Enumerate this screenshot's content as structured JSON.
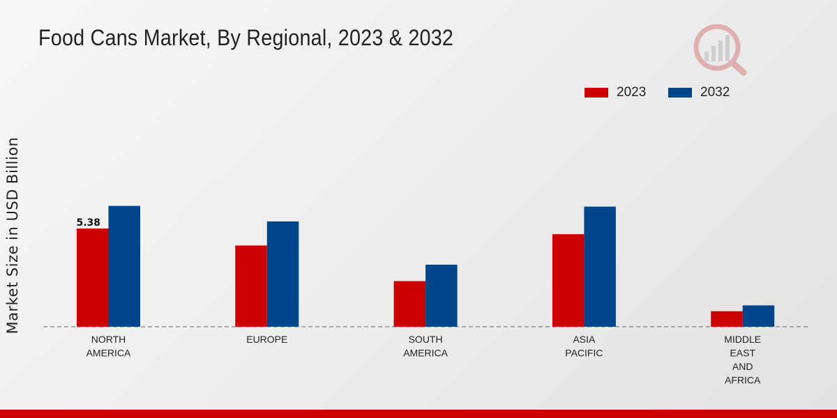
{
  "chart_data": {
    "type": "bar",
    "title": "Food Cans Market, By Regional, 2023 & 2032",
    "xlabel": "",
    "ylabel": "Market Size in USD Billion",
    "categories": [
      [
        "NORTH",
        "AMERICA"
      ],
      [
        "EUROPE"
      ],
      [
        "SOUTH",
        "AMERICA"
      ],
      [
        "ASIA",
        "PACIFIC"
      ],
      [
        "MIDDLE",
        "EAST",
        "AND",
        "AFRICA"
      ]
    ],
    "series": [
      {
        "name": "2023",
        "color": "#cc0000",
        "values": [
          5.38,
          4.45,
          2.5,
          5.07,
          0.85
        ]
      },
      {
        "name": "2032",
        "color": "#00468b",
        "values": [
          6.62,
          5.77,
          3.4,
          6.58,
          1.17
        ]
      }
    ],
    "data_labels": [
      {
        "series": 0,
        "index": 0,
        "text": "5.38"
      }
    ],
    "ylim": [
      0,
      16
    ],
    "grid": false,
    "legend_position": "top-right"
  }
}
